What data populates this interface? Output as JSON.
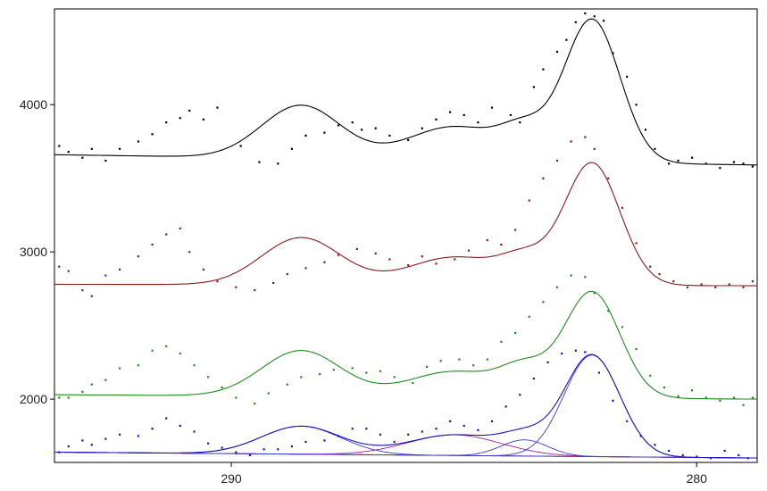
{
  "chart_data": {
    "type": "scatter",
    "title": "",
    "xlabel": "",
    "ylabel": "",
    "x_reversed": true,
    "xlim": [
      293.8,
      278.7
    ],
    "ylim": [
      1570,
      4650
    ],
    "xticks": [
      "290",
      "280"
    ],
    "xtick_values": [
      290,
      280
    ],
    "yticks": [
      "2000",
      "3000",
      "4000"
    ],
    "ytick_values": [
      2000,
      3000,
      4000
    ],
    "grid": false,
    "legend": "none",
    "series": [
      {
        "color": "#000000",
        "fit_peaks": [
          {
            "center": 288.5,
            "height": 360,
            "sigma": 0.85
          },
          {
            "center": 285.2,
            "height": 230,
            "sigma": 1.0
          },
          {
            "center": 283.7,
            "height": 180,
            "sigma": 0.5
          },
          {
            "center": 282.25,
            "height": 970,
            "sigma": 0.6
          }
        ],
        "baseline": {
          "left": 3660,
          "right": 3590
        },
        "points": [
          [
            293.7,
            3720
          ],
          [
            293.5,
            3680
          ],
          [
            293.2,
            3640
          ],
          [
            293.0,
            3700
          ],
          [
            292.7,
            3620
          ],
          [
            292.4,
            3700
          ],
          [
            292.0,
            3750
          ],
          [
            291.7,
            3800
          ],
          [
            291.4,
            3880
          ],
          [
            291.1,
            3910
          ],
          [
            290.9,
            3960
          ],
          [
            290.6,
            3900
          ],
          [
            290.3,
            3980
          ],
          [
            289.8,
            3720
          ],
          [
            289.4,
            3610
          ],
          [
            289.0,
            3600
          ],
          [
            288.7,
            3700
          ],
          [
            288.4,
            3790
          ],
          [
            288.0,
            3810
          ],
          [
            287.7,
            3860
          ],
          [
            287.4,
            3880
          ],
          [
            287.2,
            3830
          ],
          [
            286.9,
            3840
          ],
          [
            286.6,
            3790
          ],
          [
            286.2,
            3760
          ],
          [
            285.9,
            3840
          ],
          [
            285.6,
            3900
          ],
          [
            285.3,
            3950
          ],
          [
            285.0,
            3930
          ],
          [
            284.7,
            3880
          ],
          [
            284.4,
            3980
          ],
          [
            284.0,
            3930
          ],
          [
            283.8,
            3880
          ],
          [
            283.5,
            4120
          ],
          [
            283.3,
            4240
          ],
          [
            283.0,
            4360
          ],
          [
            282.8,
            4440
          ],
          [
            282.6,
            4560
          ],
          [
            282.4,
            4620
          ],
          [
            282.2,
            4600
          ],
          [
            282.0,
            4570
          ],
          [
            281.8,
            4350
          ],
          [
            281.5,
            4190
          ],
          [
            281.3,
            4000
          ],
          [
            281.1,
            3830
          ],
          [
            280.9,
            3700
          ],
          [
            280.6,
            3600
          ],
          [
            280.4,
            3620
          ],
          [
            280.1,
            3640
          ],
          [
            279.8,
            3600
          ],
          [
            279.5,
            3570
          ],
          [
            279.2,
            3610
          ],
          [
            279.0,
            3600
          ],
          [
            278.8,
            3580
          ]
        ]
      },
      {
        "color": "#8b1a1a",
        "fit_peaks": [
          {
            "center": 288.5,
            "height": 320,
            "sigma": 0.85
          },
          {
            "center": 285.2,
            "height": 190,
            "sigma": 1.0
          },
          {
            "center": 283.7,
            "height": 150,
            "sigma": 0.5
          },
          {
            "center": 282.25,
            "height": 830,
            "sigma": 0.6
          }
        ],
        "baseline": {
          "left": 2780,
          "right": 2770
        },
        "points": [
          [
            293.7,
            2900
          ],
          [
            293.5,
            2870
          ],
          [
            293.2,
            2740
          ],
          [
            293.0,
            2700
          ],
          [
            292.7,
            2840
          ],
          [
            292.4,
            2880
          ],
          [
            292.0,
            2970
          ],
          [
            291.7,
            3050
          ],
          [
            291.4,
            3120
          ],
          [
            291.1,
            3160
          ],
          [
            290.9,
            3000
          ],
          [
            290.6,
            2880
          ],
          [
            290.3,
            2800
          ],
          [
            289.9,
            2760
          ],
          [
            289.5,
            2740
          ],
          [
            289.1,
            2790
          ],
          [
            288.8,
            2850
          ],
          [
            288.4,
            2890
          ],
          [
            288.0,
            2930
          ],
          [
            287.7,
            2980
          ],
          [
            287.3,
            3020
          ],
          [
            286.9,
            2990
          ],
          [
            286.6,
            2950
          ],
          [
            286.2,
            2910
          ],
          [
            285.9,
            2970
          ],
          [
            285.6,
            2920
          ],
          [
            285.2,
            2950
          ],
          [
            284.9,
            3010
          ],
          [
            284.5,
            3080
          ],
          [
            284.2,
            3050
          ],
          [
            283.9,
            3150
          ],
          [
            283.6,
            3350
          ],
          [
            283.3,
            3500
          ],
          [
            283.0,
            3620
          ],
          [
            282.7,
            3750
          ],
          [
            282.4,
            3780
          ],
          [
            282.2,
            3700
          ],
          [
            281.9,
            3500
          ],
          [
            281.6,
            3300
          ],
          [
            281.3,
            3060
          ],
          [
            281.0,
            2900
          ],
          [
            280.8,
            2850
          ],
          [
            280.5,
            2800
          ],
          [
            280.2,
            2760
          ],
          [
            279.9,
            2780
          ],
          [
            279.6,
            2760
          ],
          [
            279.3,
            2780
          ],
          [
            279.0,
            2760
          ],
          [
            278.8,
            2800
          ]
        ]
      },
      {
        "color": "#1e8c1e",
        "fit_peaks": [
          {
            "center": 288.5,
            "height": 310,
            "sigma": 0.85
          },
          {
            "center": 285.2,
            "height": 175,
            "sigma": 1.0
          },
          {
            "center": 283.7,
            "height": 170,
            "sigma": 0.5
          },
          {
            "center": 282.25,
            "height": 720,
            "sigma": 0.6
          }
        ],
        "baseline": {
          "left": 2030,
          "right": 2000
        },
        "points": [
          [
            293.7,
            2010
          ],
          [
            293.5,
            2010
          ],
          [
            293.2,
            2050
          ],
          [
            293.0,
            2100
          ],
          [
            292.7,
            2130
          ],
          [
            292.4,
            2210
          ],
          [
            292.0,
            2230
          ],
          [
            291.7,
            2330
          ],
          [
            291.4,
            2360
          ],
          [
            291.1,
            2310
          ],
          [
            290.8,
            2230
          ],
          [
            290.5,
            2150
          ],
          [
            290.2,
            2080
          ],
          [
            289.9,
            2010
          ],
          [
            289.5,
            1970
          ],
          [
            289.2,
            2040
          ],
          [
            288.8,
            2100
          ],
          [
            288.5,
            2150
          ],
          [
            288.1,
            2170
          ],
          [
            287.8,
            2200
          ],
          [
            287.4,
            2210
          ],
          [
            287.1,
            2180
          ],
          [
            286.8,
            2190
          ],
          [
            286.5,
            2150
          ],
          [
            286.1,
            2110
          ],
          [
            285.8,
            2220
          ],
          [
            285.5,
            2260
          ],
          [
            285.1,
            2270
          ],
          [
            284.8,
            2230
          ],
          [
            284.5,
            2270
          ],
          [
            284.2,
            2390
          ],
          [
            283.9,
            2450
          ],
          [
            283.6,
            2560
          ],
          [
            283.3,
            2660
          ],
          [
            283.0,
            2760
          ],
          [
            282.7,
            2840
          ],
          [
            282.4,
            2830
          ],
          [
            282.2,
            2720
          ],
          [
            281.9,
            2600
          ],
          [
            281.6,
            2490
          ],
          [
            281.3,
            2340
          ],
          [
            281.0,
            2160
          ],
          [
            280.7,
            2080
          ],
          [
            280.4,
            2020
          ],
          [
            280.1,
            2060
          ],
          [
            279.8,
            2010
          ],
          [
            279.5,
            1990
          ],
          [
            279.2,
            2010
          ],
          [
            279.0,
            1960
          ],
          [
            278.8,
            2010
          ]
        ]
      },
      {
        "color": "#1414c8",
        "fit_peaks": [
          {
            "center": 288.5,
            "height": 190,
            "sigma": 0.85
          },
          {
            "center": 285.2,
            "height": 140,
            "sigma": 1.0
          },
          {
            "center": 283.7,
            "height": 110,
            "sigma": 0.5
          },
          {
            "center": 282.25,
            "height": 690,
            "sigma": 0.6
          }
        ],
        "baseline": {
          "left": 1640,
          "right": 1600
        },
        "points": [
          [
            293.7,
            1640
          ],
          [
            293.5,
            1680
          ],
          [
            293.2,
            1720
          ],
          [
            293.0,
            1690
          ],
          [
            292.7,
            1730
          ],
          [
            292.4,
            1760
          ],
          [
            292.0,
            1750
          ],
          [
            291.7,
            1800
          ],
          [
            291.4,
            1870
          ],
          [
            291.1,
            1820
          ],
          [
            290.8,
            1780
          ],
          [
            290.5,
            1700
          ],
          [
            290.2,
            1670
          ],
          [
            289.9,
            1640
          ],
          [
            289.6,
            1620
          ],
          [
            289.3,
            1660
          ],
          [
            289.0,
            1660
          ],
          [
            288.7,
            1680
          ],
          [
            288.4,
            1710
          ],
          [
            288.0,
            1720
          ],
          [
            287.7,
            1750
          ],
          [
            287.4,
            1800
          ],
          [
            287.1,
            1800
          ],
          [
            286.8,
            1760
          ],
          [
            286.5,
            1710
          ],
          [
            286.2,
            1760
          ],
          [
            285.9,
            1780
          ],
          [
            285.6,
            1800
          ],
          [
            285.3,
            1850
          ],
          [
            285.0,
            1820
          ],
          [
            284.7,
            1790
          ],
          [
            284.4,
            1850
          ],
          [
            284.1,
            1950
          ],
          [
            283.8,
            2030
          ],
          [
            283.5,
            2140
          ],
          [
            283.2,
            2250
          ],
          [
            282.9,
            2310
          ],
          [
            282.6,
            2330
          ],
          [
            282.4,
            2320
          ],
          [
            282.1,
            2180
          ],
          [
            281.8,
            1990
          ],
          [
            281.5,
            1850
          ],
          [
            281.2,
            1750
          ],
          [
            280.9,
            1690
          ],
          [
            280.6,
            1650
          ],
          [
            280.3,
            1620
          ],
          [
            280.0,
            1610
          ],
          [
            279.7,
            1600
          ],
          [
            279.4,
            1650
          ],
          [
            279.1,
            1620
          ],
          [
            278.9,
            1600
          ]
        ]
      }
    ],
    "components_color": "#3a3ad8",
    "component_highlight_color": "#a020a0",
    "background_line_color": "#c01818"
  }
}
